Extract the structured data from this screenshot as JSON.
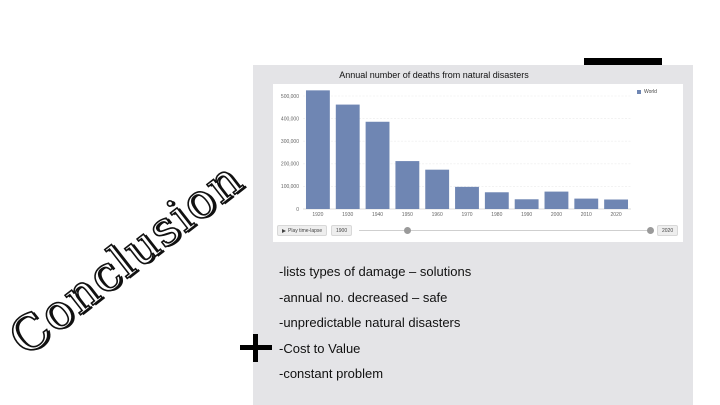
{
  "slide_title": "Conclusion",
  "chart_data": {
    "type": "bar",
    "title": "Annual number of deaths from natural disasters",
    "categories": [
      "1920",
      "1930",
      "1940",
      "1950",
      "1960",
      "1970",
      "1980",
      "1990",
      "2000",
      "2010",
      "2020"
    ],
    "series": [
      {
        "name": "World",
        "values": [
          525000,
          462000,
          386000,
          212000,
          174000,
          98000,
          74000,
          43000,
          77000,
          46000,
          42000
        ]
      }
    ],
    "ylim": [
      0,
      500000
    ],
    "yticks": [
      0,
      100000,
      200000,
      300000,
      400000,
      500000
    ],
    "ytick_labels": [
      "0",
      "100,000",
      "200,000",
      "300,000",
      "400,000",
      "500,000"
    ],
    "xlabel": "",
    "ylabel": "",
    "grid": true,
    "legend": "top-right",
    "bar_color": "#6f86b3"
  },
  "controls": {
    "play_label": "Play time-lapse",
    "start_year": "1900",
    "end_year": "2020"
  },
  "bullets": [
    "-lists types of damage – solutions",
    "-annual no. decreased – safe",
    "-unpredictable natural disasters",
    "-Cost to Value",
    "-constant problem"
  ],
  "icons": {
    "plus": "plus-icon",
    "play": "play-icon"
  }
}
